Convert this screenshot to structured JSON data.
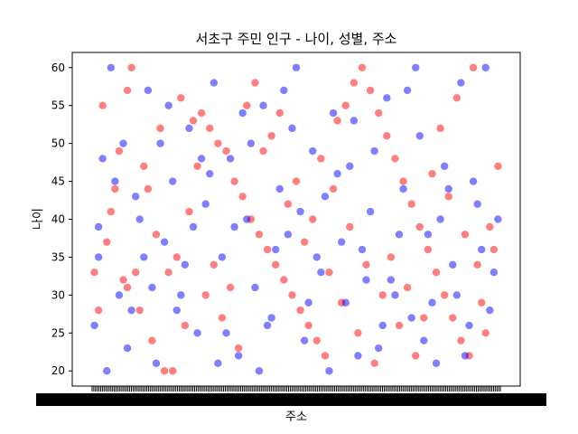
{
  "chart_data": {
    "type": "scatter",
    "title": "서초구 주민 인구 - 나이, 성별, 주소",
    "xlabel": "주소",
    "ylabel": "나이",
    "ylim": [
      18.0,
      62.0
    ],
    "yticks": [
      20,
      25,
      30,
      35,
      40,
      45,
      50,
      55,
      60
    ],
    "x_tick_labels": "overlapping, unreadable",
    "grid": false,
    "series_colors": {
      "red": "#ff0000",
      "blue": "#0000ff"
    },
    "series": [
      {
        "values": [
          [
            0.1,
            60
          ],
          [
            0.03,
            55
          ],
          [
            0.06,
            44
          ],
          [
            0.05,
            41
          ],
          [
            0.04,
            37
          ],
          [
            0.02,
            28
          ],
          [
            0.08,
            32
          ],
          [
            0.09,
            31
          ],
          [
            0.12,
            28
          ],
          [
            0.15,
            24
          ],
          [
            0.18,
            20
          ],
          [
            0.2,
            20
          ],
          [
            0.22,
            56
          ],
          [
            0.25,
            53
          ],
          [
            0.27,
            54
          ],
          [
            0.29,
            52
          ],
          [
            0.31,
            50
          ],
          [
            0.33,
            49
          ],
          [
            0.35,
            45
          ],
          [
            0.37,
            43
          ],
          [
            0.39,
            40
          ],
          [
            0.41,
            38
          ],
          [
            0.43,
            36
          ],
          [
            0.45,
            34
          ],
          [
            0.47,
            32
          ],
          [
            0.49,
            30
          ],
          [
            0.51,
            28
          ],
          [
            0.53,
            26
          ],
          [
            0.55,
            24
          ],
          [
            0.57,
            22
          ],
          [
            0.6,
            53
          ],
          [
            0.62,
            55
          ],
          [
            0.64,
            58
          ],
          [
            0.66,
            60
          ],
          [
            0.68,
            57
          ],
          [
            0.7,
            54
          ],
          [
            0.72,
            51
          ],
          [
            0.74,
            48
          ],
          [
            0.76,
            45
          ],
          [
            0.78,
            42
          ],
          [
            0.8,
            39
          ],
          [
            0.82,
            36
          ],
          [
            0.84,
            33
          ],
          [
            0.86,
            30
          ],
          [
            0.88,
            27
          ],
          [
            0.9,
            24
          ],
          [
            0.92,
            22
          ],
          [
            0.95,
            29
          ],
          [
            0.97,
            39
          ],
          [
            0.99,
            47
          ],
          [
            0.14,
            44
          ],
          [
            0.16,
            38
          ],
          [
            0.19,
            33
          ],
          [
            0.23,
            26
          ],
          [
            0.26,
            47
          ],
          [
            0.3,
            34
          ],
          [
            0.34,
            31
          ],
          [
            0.38,
            55
          ],
          [
            0.42,
            49
          ],
          [
            0.46,
            54
          ],
          [
            0.5,
            45
          ],
          [
            0.54,
            40
          ],
          [
            0.58,
            33
          ],
          [
            0.61,
            29
          ],
          [
            0.65,
            25
          ],
          [
            0.69,
            21
          ],
          [
            0.73,
            35
          ],
          [
            0.77,
            31
          ],
          [
            0.81,
            27
          ],
          [
            0.85,
            52
          ],
          [
            0.89,
            56
          ],
          [
            0.93,
            60
          ],
          [
            0.11,
            33
          ],
          [
            0.13,
            47
          ],
          [
            0.17,
            52
          ],
          [
            0.21,
            35
          ],
          [
            0.24,
            41
          ],
          [
            0.28,
            30
          ],
          [
            0.32,
            27
          ],
          [
            0.36,
            23
          ],
          [
            0.4,
            58
          ],
          [
            0.44,
            51
          ],
          [
            0.48,
            42
          ],
          [
            0.52,
            37
          ],
          [
            0.56,
            48
          ],
          [
            0.59,
            44
          ],
          [
            0.63,
            39
          ],
          [
            0.67,
            34
          ],
          [
            0.71,
            30
          ],
          [
            0.75,
            26
          ],
          [
            0.79,
            22
          ],
          [
            0.83,
            46
          ],
          [
            0.87,
            43
          ],
          [
            0.91,
            38
          ],
          [
            0.94,
            34
          ],
          [
            0.96,
            25
          ],
          [
            0.98,
            36
          ],
          [
            0.07,
            49
          ],
          [
            0.01,
            33
          ],
          [
            0.09,
            57
          ]
        ]
      },
      {
        "values": [
          [
            0.05,
            60
          ],
          [
            0.03,
            48
          ],
          [
            0.02,
            35
          ],
          [
            0.01,
            26
          ],
          [
            0.04,
            20
          ],
          [
            0.06,
            45
          ],
          [
            0.08,
            50
          ],
          [
            0.1,
            28
          ],
          [
            0.12,
            40
          ],
          [
            0.14,
            57
          ],
          [
            0.16,
            21
          ],
          [
            0.18,
            37
          ],
          [
            0.2,
            45
          ],
          [
            0.22,
            30
          ],
          [
            0.24,
            52
          ],
          [
            0.26,
            25
          ],
          [
            0.28,
            42
          ],
          [
            0.3,
            58
          ],
          [
            0.32,
            35
          ],
          [
            0.34,
            48
          ],
          [
            0.36,
            22
          ],
          [
            0.38,
            40
          ],
          [
            0.4,
            31
          ],
          [
            0.42,
            55
          ],
          [
            0.44,
            27
          ],
          [
            0.46,
            44
          ],
          [
            0.48,
            38
          ],
          [
            0.5,
            60
          ],
          [
            0.52,
            24
          ],
          [
            0.54,
            49
          ],
          [
            0.56,
            33
          ],
          [
            0.58,
            20
          ],
          [
            0.6,
            46
          ],
          [
            0.62,
            29
          ],
          [
            0.64,
            53
          ],
          [
            0.66,
            36
          ],
          [
            0.68,
            41
          ],
          [
            0.7,
            23
          ],
          [
            0.72,
            56
          ],
          [
            0.74,
            30
          ],
          [
            0.76,
            44
          ],
          [
            0.78,
            27
          ],
          [
            0.8,
            51
          ],
          [
            0.82,
            38
          ],
          [
            0.84,
            21
          ],
          [
            0.86,
            47
          ],
          [
            0.88,
            34
          ],
          [
            0.9,
            58
          ],
          [
            0.92,
            26
          ],
          [
            0.94,
            42
          ],
          [
            0.96,
            60
          ],
          [
            0.98,
            33
          ],
          [
            0.13,
            35
          ],
          [
            0.17,
            50
          ],
          [
            0.21,
            28
          ],
          [
            0.25,
            39
          ],
          [
            0.29,
            46
          ],
          [
            0.33,
            25
          ],
          [
            0.37,
            54
          ],
          [
            0.41,
            20
          ],
          [
            0.45,
            36
          ],
          [
            0.49,
            52
          ],
          [
            0.53,
            29
          ],
          [
            0.57,
            43
          ],
          [
            0.61,
            37
          ],
          [
            0.65,
            22
          ],
          [
            0.69,
            49
          ],
          [
            0.73,
            32
          ],
          [
            0.77,
            57
          ],
          [
            0.81,
            24
          ],
          [
            0.85,
            40
          ],
          [
            0.89,
            30
          ],
          [
            0.93,
            45
          ],
          [
            0.97,
            28
          ],
          [
            0.11,
            43
          ],
          [
            0.15,
            31
          ],
          [
            0.19,
            55
          ],
          [
            0.23,
            34
          ],
          [
            0.27,
            48
          ],
          [
            0.31,
            21
          ],
          [
            0.35,
            39
          ],
          [
            0.39,
            50
          ],
          [
            0.43,
            26
          ],
          [
            0.47,
            57
          ],
          [
            0.51,
            41
          ],
          [
            0.55,
            35
          ],
          [
            0.59,
            54
          ],
          [
            0.63,
            47
          ],
          [
            0.67,
            32
          ],
          [
            0.71,
            26
          ],
          [
            0.75,
            38
          ],
          [
            0.79,
            60
          ],
          [
            0.83,
            29
          ],
          [
            0.87,
            44
          ],
          [
            0.91,
            22
          ],
          [
            0.95,
            36
          ],
          [
            0.99,
            40
          ],
          [
            0.07,
            30
          ],
          [
            0.09,
            23
          ],
          [
            0.02,
            39
          ]
        ]
      }
    ]
  }
}
